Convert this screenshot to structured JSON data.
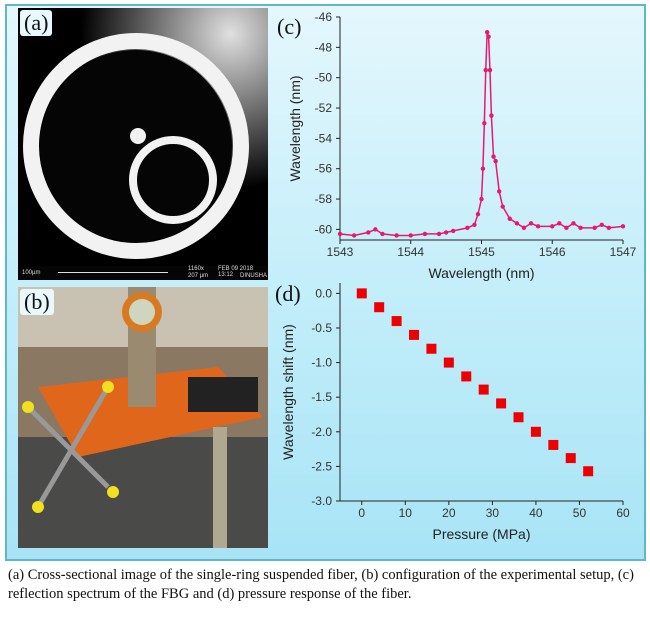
{
  "panels": {
    "a": "(a)",
    "b": "(b)",
    "c": "(c)",
    "d": "(d)"
  },
  "sem": {
    "scale": "100µm",
    "mag": "1160x",
    "fov": "207 µm",
    "date": "FEB 09 2018 13:12",
    "operator": "DINUSHA"
  },
  "caption": "(a) Cross-sectional image of the single-ring suspended fiber, (b) configuration of the experimental setup, (c) reflection spectrum of the FBG and (d) pressure response of the fiber.",
  "colors": {
    "spectrum": "#e8186e",
    "points": "#ee0000"
  },
  "chart_data": [
    {
      "type": "line",
      "title": "",
      "xlabel": "Wavelength (nm)",
      "ylabel": "Wavelength (nm)",
      "xlim": [
        1543,
        1547
      ],
      "ylim": [
        -60.7,
        -46
      ],
      "xticks": [
        "1543",
        "1544",
        "1545",
        "1546",
        "1547"
      ],
      "yticks": [
        "-46",
        "-48",
        "-50",
        "-52",
        "-54",
        "-56",
        "-58",
        "-60"
      ],
      "x": [
        1543,
        1543.2,
        1543.4,
        1543.5,
        1543.6,
        1543.8,
        1544,
        1544.2,
        1544.4,
        1544.5,
        1544.6,
        1544.8,
        1544.9,
        1544.95,
        1545.0,
        1545.02,
        1545.04,
        1545.06,
        1545.08,
        1545.1,
        1545.12,
        1545.14,
        1545.17,
        1545.2,
        1545.25,
        1545.3,
        1545.4,
        1545.5,
        1545.6,
        1545.7,
        1545.8,
        1546,
        1546.1,
        1546.2,
        1546.3,
        1546.4,
        1546.6,
        1546.7,
        1546.8,
        1547
      ],
      "y": [
        -60.3,
        -60.4,
        -60.2,
        -60.0,
        -60.3,
        -60.4,
        -60.4,
        -60.3,
        -60.3,
        -60.2,
        -60.1,
        -59.9,
        -59.7,
        -59.0,
        -58.0,
        -56.0,
        -53.0,
        -49.5,
        -47.0,
        -47.3,
        -49.5,
        -52.5,
        -55.2,
        -55.5,
        -57.5,
        -58.5,
        -59.3,
        -59.6,
        -59.9,
        -59.6,
        -59.8,
        -59.8,
        -59.6,
        -59.9,
        -59.6,
        -59.9,
        -59.9,
        -59.7,
        -59.9,
        -59.8
      ]
    },
    {
      "type": "scatter",
      "title": "",
      "xlabel": "Pressure (MPa)",
      "ylabel": "Wavelength shift (nm)",
      "xlim": [
        -5,
        60
      ],
      "ylim": [
        -3.0,
        0.15
      ],
      "xticks": [
        "0",
        "10",
        "20",
        "30",
        "40",
        "50",
        "60"
      ],
      "yticks": [
        "0.0",
        "-0.5",
        "-1.0",
        "-1.5",
        "-2.0",
        "-2.5",
        "-3.0"
      ],
      "x": [
        0,
        4,
        8,
        12,
        16,
        20,
        24,
        28,
        32,
        36,
        40,
        44,
        48,
        52
      ],
      "y": [
        0,
        -0.2,
        -0.4,
        -0.6,
        -0.8,
        -1.0,
        -1.2,
        -1.39,
        -1.59,
        -1.79,
        -2.0,
        -2.19,
        -2.38,
        -2.57
      ]
    }
  ]
}
